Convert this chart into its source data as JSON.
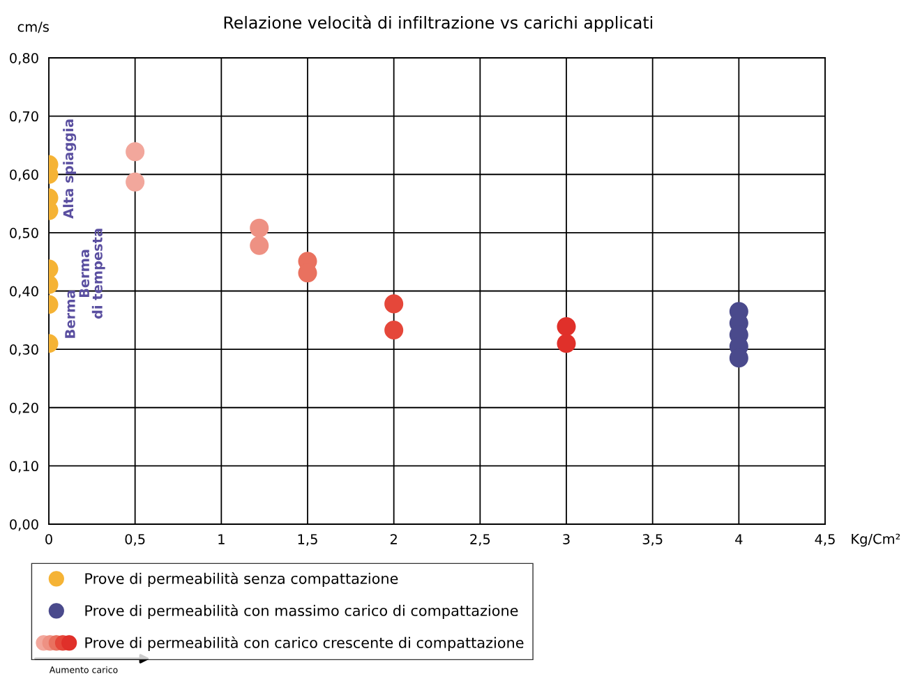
{
  "chart_data": {
    "type": "scatter",
    "title": "Relazione velocità di infiltrazione vs carichi applicati",
    "xlabel": "Kg/Cm²",
    "ylabel": "cm/s",
    "xlim": [
      0,
      4.5
    ],
    "xticks": [
      0,
      {
        "value": 0.5,
        "label": "0,5"
      },
      1,
      {
        "value": 1.5,
        "label": "1,5"
      },
      2,
      {
        "value": 2.5,
        "label": "2,5"
      },
      3,
      {
        "value": 3.5,
        "label": "3,5"
      },
      4,
      {
        "value": 4.5,
        "label": "4,5"
      }
    ],
    "ylim": [
      0,
      0.8
    ],
    "yticks": [
      {
        "value": 0,
        "label": "0,00"
      },
      {
        "value": 0.1,
        "label": "0,10"
      },
      {
        "value": 0.2,
        "label": "0,20"
      },
      {
        "value": 0.3,
        "label": "0,30"
      },
      {
        "value": 0.4,
        "label": "0,40"
      },
      {
        "value": 0.5,
        "label": "0,50"
      },
      {
        "value": 0.6,
        "label": "0,60"
      },
      {
        "value": 0.7,
        "label": "0,70"
      },
      {
        "value": 0.8,
        "label": "0,80"
      }
    ],
    "grid": true,
    "legend": "bottom",
    "marker": "circle",
    "series": [
      {
        "name": "Prove di permeabilità senza compattazione",
        "color": "#f5b335",
        "x": [
          0,
          0,
          0,
          0,
          0,
          0,
          0,
          0
        ],
        "values": [
          0.617,
          0.6,
          0.56,
          0.538,
          0.438,
          0.411,
          0.377,
          0.31
        ]
      },
      {
        "name": "Prove di permeabilità con massimo carico di compattazione",
        "color": "#4a4a8c",
        "x": [
          4,
          4,
          4,
          4,
          4
        ],
        "values": [
          0.365,
          0.345,
          0.325,
          0.305,
          0.285
        ]
      },
      {
        "name": "Prove di permeabilità con carico crescente di compattazione",
        "colors": [
          "#f2a79c",
          "#f2a79c",
          "#ee9183",
          "#ee9183",
          "#e9715f",
          "#e9715f",
          "#e5473a",
          "#e5473a",
          "#e0302a",
          "#e0302a"
        ],
        "x": [
          0.5,
          0.5,
          1.22,
          1.22,
          1.5,
          1.5,
          2,
          2,
          3,
          3
        ],
        "values": [
          0.639,
          0.587,
          0.508,
          0.478,
          0.451,
          0.431,
          0.378,
          0.333,
          0.339,
          0.31
        ]
      }
    ],
    "annotations": [
      "Alta spiaggia",
      "Berma\ndi tempesta",
      "Berma",
      "Aumento carico"
    ]
  }
}
